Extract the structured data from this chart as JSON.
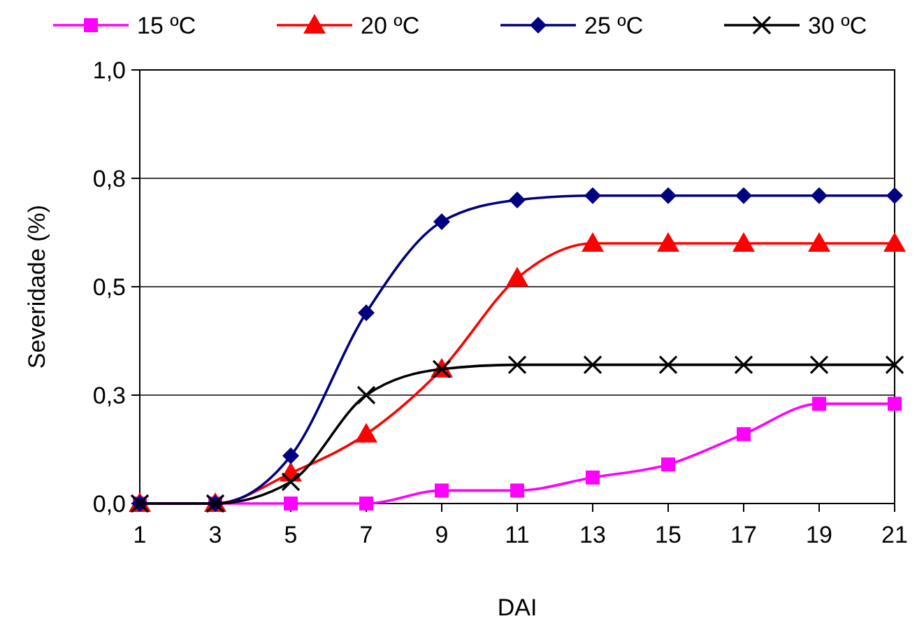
{
  "chart_data": {
    "type": "line",
    "xlabel": "DAI",
    "ylabel": "Severidade (%)",
    "x": [
      1,
      3,
      5,
      7,
      9,
      11,
      13,
      15,
      17,
      19,
      21
    ],
    "xlim": [
      1,
      21
    ],
    "xticks": [
      1,
      3,
      5,
      7,
      9,
      11,
      13,
      15,
      17,
      19,
      21
    ],
    "ylim": [
      0,
      1
    ],
    "yticks": [
      {
        "value": 0,
        "label": "0,0"
      },
      {
        "value": 0.25,
        "label": "0,3"
      },
      {
        "value": 0.5,
        "label": "0,5"
      },
      {
        "value": 0.75,
        "label": "0,8"
      },
      {
        "value": 1,
        "label": "1,0"
      }
    ],
    "grid": "y",
    "legend": "top",
    "line_style": "solid",
    "series": [
      {
        "name": "15 ºC",
        "color": "#ff00ff",
        "marker": "square",
        "values": [
          0,
          0,
          0,
          0,
          0.03,
          0.03,
          0.06,
          0.09,
          0.16,
          0.23,
          0.23
        ]
      },
      {
        "name": "20 ºC",
        "color": "#ff0000",
        "marker": "triangle",
        "values": [
          0,
          0,
          0.07,
          0.16,
          0.31,
          0.52,
          0.6,
          0.6,
          0.6,
          0.6,
          0.6
        ]
      },
      {
        "name": "25 ºC",
        "color": "#000080",
        "marker": "diamond",
        "values": [
          0,
          0,
          0.11,
          0.44,
          0.65,
          0.7,
          0.71,
          0.71,
          0.71,
          0.71,
          0.71
        ]
      },
      {
        "name": "30 ºC",
        "color": "#000000",
        "marker": "cross",
        "values": [
          0,
          0,
          0.05,
          0.25,
          0.31,
          0.32,
          0.32,
          0.32,
          0.32,
          0.32,
          0.32
        ]
      }
    ]
  }
}
